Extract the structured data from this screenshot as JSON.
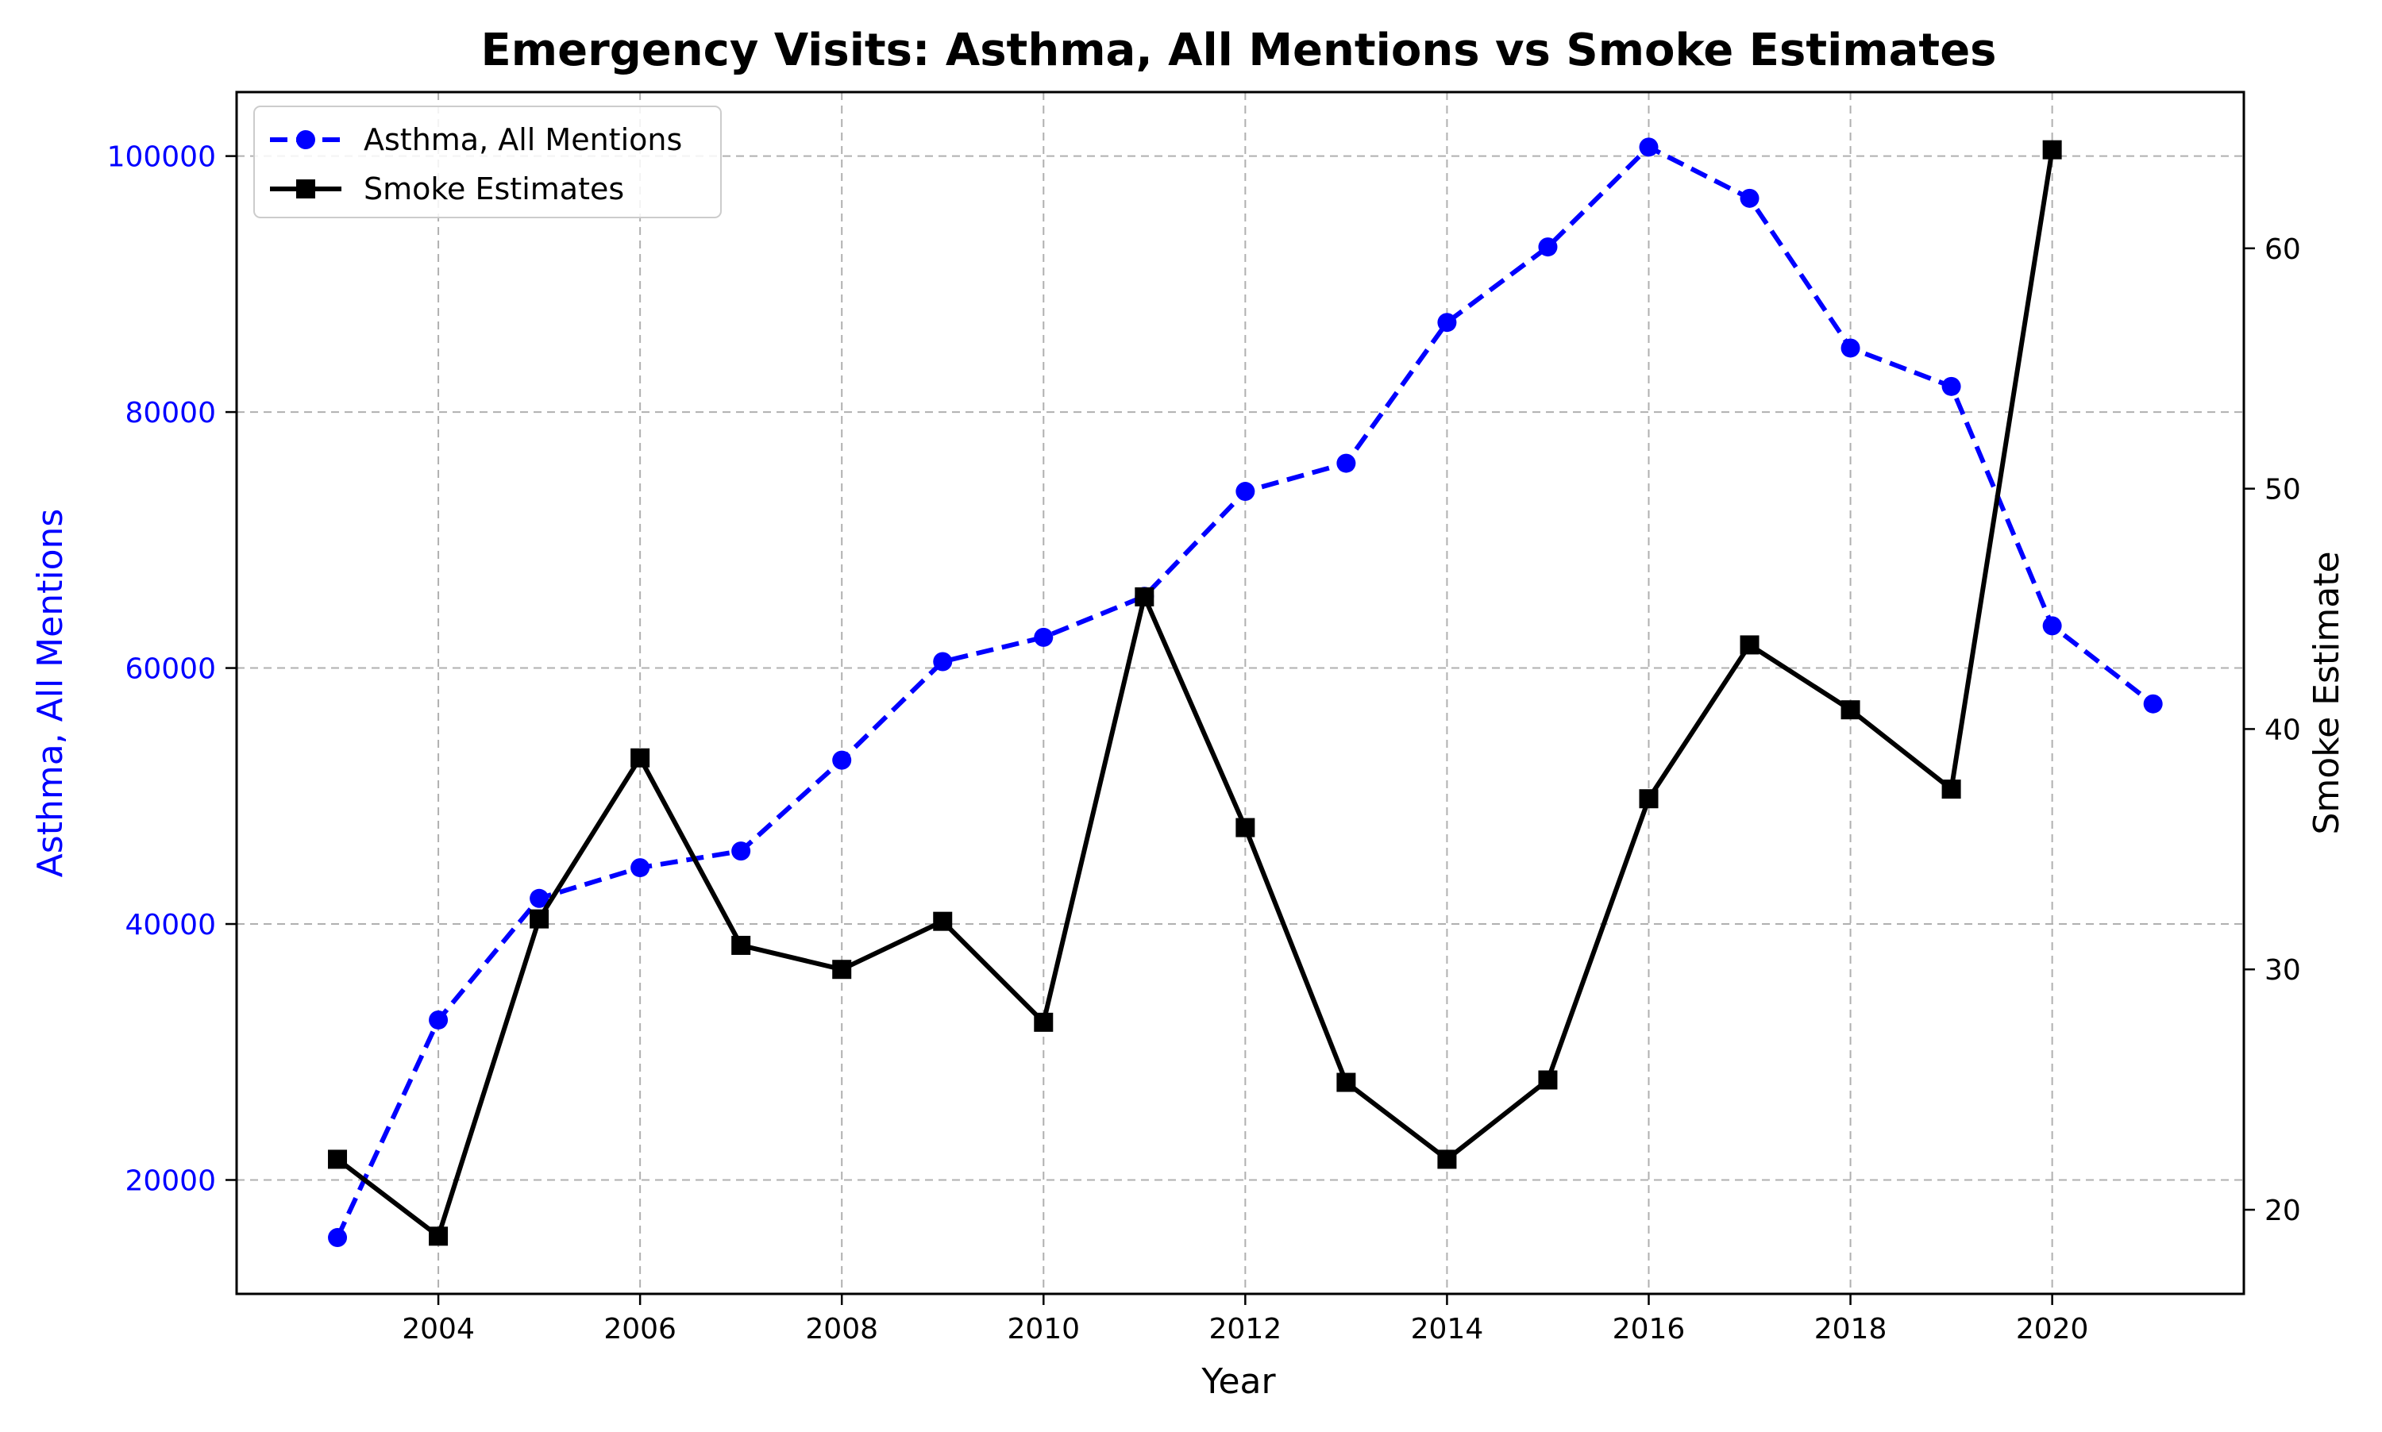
{
  "chart_data": {
    "type": "line",
    "title": "Emergency Visits: Asthma, All Mentions vs Smoke Estimates",
    "xlabel": "Year",
    "ylabel_left": "Asthma, All Mentions",
    "ylabel_right": "Smoke Estimate",
    "xlim": [
      2002,
      2021.9
    ],
    "ylim_left": [
      11100,
      105000
    ],
    "ylim_right": [
      16.5,
      66.5
    ],
    "x_ticks": [
      2004,
      2006,
      2008,
      2010,
      2012,
      2014,
      2016,
      2018,
      2020
    ],
    "y_left_ticks": [
      20000,
      40000,
      60000,
      80000,
      100000
    ],
    "y_right_ticks": [
      20,
      30,
      40,
      50,
      60
    ],
    "grid": true,
    "legend_position": "top-left",
    "series": [
      {
        "name": "Asthma, All Mentions",
        "axis": "left",
        "color": "#0000ff",
        "line_style": "dashed",
        "marker": "circle",
        "x": [
          2003,
          2004,
          2005,
          2006,
          2007,
          2008,
          2009,
          2010,
          2011,
          2012,
          2013,
          2014,
          2015,
          2016,
          2017,
          2018,
          2019,
          2020,
          2021
        ],
        "values": [
          15500,
          32500,
          42000,
          44400,
          45700,
          52800,
          60500,
          62400,
          65600,
          73800,
          76000,
          87000,
          92900,
          100700,
          96700,
          85000,
          82000,
          63300,
          57200
        ]
      },
      {
        "name": "Smoke Estimates",
        "axis": "right",
        "color": "#000000",
        "line_style": "solid",
        "marker": "square",
        "x": [
          2003,
          2004,
          2005,
          2006,
          2007,
          2008,
          2009,
          2010,
          2011,
          2012,
          2013,
          2014,
          2015,
          2016,
          2017,
          2018,
          2019,
          2020
        ],
        "values": [
          22.1,
          18.9,
          32.1,
          38.8,
          31.0,
          30.0,
          32.0,
          27.8,
          45.5,
          35.9,
          25.3,
          22.1,
          25.4,
          37.1,
          43.5,
          40.8,
          37.5,
          64.1
        ]
      }
    ]
  }
}
